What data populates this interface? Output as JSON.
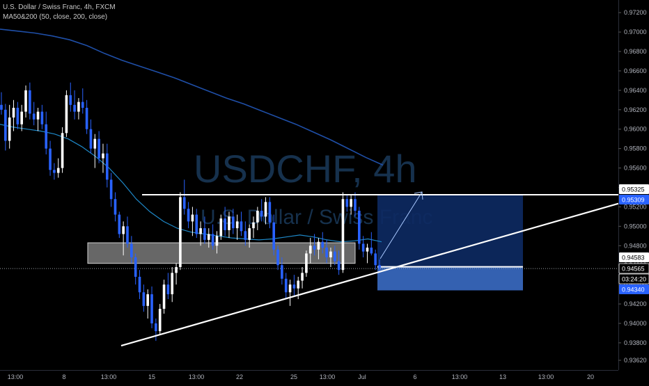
{
  "legend": {
    "symbol_line": "U.S. Dollar / Swiss Franc, 4h, FXCM",
    "indicator_line": "MA50&200 (50, close, 200, close)"
  },
  "watermark": {
    "ticker": "USDCHF, 4h",
    "name": "U.S. Dollar / Swiss Franc"
  },
  "colors": {
    "background": "#000000",
    "up_candle": "#ffffff",
    "down_candle": "#2962ff",
    "ma50": "#1e88c8",
    "ma200": "#1f4fa8",
    "position_box": "#0d2a63",
    "stop_box": "#3a6bc4",
    "grid": "#1a1a1a",
    "axis_text": "#b2b5be"
  },
  "chart_data": {
    "type": "candlestick",
    "title": "U.S. Dollar / Swiss Franc, 4h, FXCM",
    "y_ticks": [
      "0.97200",
      "0.97000",
      "0.96800",
      "0.96600",
      "0.96400",
      "0.96200",
      "0.96000",
      "0.95800",
      "0.95600",
      "0.95400",
      "0.95200",
      "0.95000",
      "0.94800",
      "0.94600",
      "0.94400",
      "0.94200",
      "0.94000",
      "0.93800",
      "0.93620"
    ],
    "x_ticks": [
      "13:00",
      "8",
      "13:00",
      "15",
      "13:00",
      "22",
      "25",
      "13:00",
      "Jul",
      "6",
      "13:00",
      "13",
      "13:00",
      "20"
    ],
    "ylim": [
      0.9352,
      0.9733
    ],
    "price_labels": [
      {
        "text": "0.95325",
        "style": "white"
      },
      {
        "text": "0.95309",
        "style": "blue"
      },
      {
        "text": "0.94583",
        "style": "white"
      },
      {
        "text": "0.94565",
        "style": "plain"
      },
      {
        "text": "03:24:20",
        "style": "plain"
      },
      {
        "text": "0.94340",
        "style": "blue"
      }
    ],
    "candles_ohlc": [
      [
        0.9625,
        0.9638,
        0.9615,
        0.962
      ],
      [
        0.962,
        0.9626,
        0.9578,
        0.9588
      ],
      [
        0.9588,
        0.9625,
        0.958,
        0.9612
      ],
      [
        0.9612,
        0.963,
        0.9598,
        0.9622
      ],
      [
        0.9622,
        0.9628,
        0.96,
        0.9605
      ],
      [
        0.9605,
        0.9625,
        0.9598,
        0.9618
      ],
      [
        0.9618,
        0.9645,
        0.9612,
        0.964
      ],
      [
        0.964,
        0.9648,
        0.961,
        0.9616
      ],
      [
        0.9616,
        0.9628,
        0.9604,
        0.961
      ],
      [
        0.961,
        0.9622,
        0.9598,
        0.9618
      ],
      [
        0.9618,
        0.9625,
        0.96,
        0.9605
      ],
      [
        0.9605,
        0.9618,
        0.9574,
        0.958
      ],
      [
        0.958,
        0.9588,
        0.9552,
        0.9558
      ],
      [
        0.9558,
        0.9565,
        0.9548,
        0.9555
      ],
      [
        0.9555,
        0.957,
        0.955,
        0.956
      ],
      [
        0.956,
        0.9602,
        0.9555,
        0.9596
      ],
      [
        0.9596,
        0.964,
        0.9592,
        0.9635
      ],
      [
        0.9635,
        0.9648,
        0.9618,
        0.9625
      ],
      [
        0.9625,
        0.964,
        0.961,
        0.9618
      ],
      [
        0.9618,
        0.9632,
        0.961,
        0.9628
      ],
      [
        0.9628,
        0.9642,
        0.9616,
        0.9622
      ],
      [
        0.9622,
        0.963,
        0.9595,
        0.96
      ],
      [
        0.96,
        0.961,
        0.9575,
        0.958
      ],
      [
        0.958,
        0.9595,
        0.956,
        0.959
      ],
      [
        0.959,
        0.9598,
        0.9565,
        0.957
      ],
      [
        0.957,
        0.9585,
        0.9555,
        0.9575
      ],
      [
        0.9575,
        0.9585,
        0.954,
        0.9548
      ],
      [
        0.9548,
        0.9555,
        0.952,
        0.9528
      ],
      [
        0.9528,
        0.9535,
        0.9505,
        0.9512
      ],
      [
        0.9512,
        0.9515,
        0.9488,
        0.9492
      ],
      [
        0.9492,
        0.9505,
        0.947,
        0.95
      ],
      [
        0.95,
        0.951,
        0.9478,
        0.9482
      ],
      [
        0.9482,
        0.949,
        0.9462,
        0.9468
      ],
      [
        0.9468,
        0.9472,
        0.944,
        0.9448
      ],
      [
        0.9448,
        0.9455,
        0.9425,
        0.9432
      ],
      [
        0.9432,
        0.944,
        0.9412,
        0.9418
      ],
      [
        0.9418,
        0.9435,
        0.9405,
        0.943
      ],
      [
        0.943,
        0.9438,
        0.9395,
        0.94
      ],
      [
        0.94,
        0.9405,
        0.9382,
        0.9392
      ],
      [
        0.9392,
        0.942,
        0.9388,
        0.9415
      ],
      [
        0.9415,
        0.9445,
        0.941,
        0.944
      ],
      [
        0.944,
        0.9452,
        0.9425,
        0.943
      ],
      [
        0.943,
        0.9458,
        0.9422,
        0.9452
      ],
      [
        0.9452,
        0.9462,
        0.944,
        0.9458
      ],
      [
        0.9458,
        0.9535,
        0.9455,
        0.953
      ],
      [
        0.953,
        0.9548,
        0.9512,
        0.9518
      ],
      [
        0.9518,
        0.9525,
        0.9498,
        0.9505
      ],
      [
        0.9505,
        0.952,
        0.949,
        0.9512
      ],
      [
        0.9512,
        0.9518,
        0.9488,
        0.9492
      ],
      [
        0.9492,
        0.9505,
        0.948,
        0.9498
      ],
      [
        0.9498,
        0.951,
        0.9482,
        0.9486
      ],
      [
        0.9486,
        0.9498,
        0.9478,
        0.9492
      ],
      [
        0.9492,
        0.9502,
        0.9476,
        0.948
      ],
      [
        0.948,
        0.9495,
        0.9472,
        0.949
      ],
      [
        0.949,
        0.9512,
        0.9486,
        0.9508
      ],
      [
        0.9508,
        0.952,
        0.949,
        0.9496
      ],
      [
        0.9496,
        0.9515,
        0.9488,
        0.951
      ],
      [
        0.951,
        0.9518,
        0.9492,
        0.9498
      ],
      [
        0.9498,
        0.9512,
        0.9486,
        0.9505
      ],
      [
        0.9505,
        0.9515,
        0.949,
        0.9495
      ],
      [
        0.9495,
        0.9505,
        0.948,
        0.9486
      ],
      [
        0.9486,
        0.9502,
        0.9478,
        0.9498
      ],
      [
        0.9498,
        0.951,
        0.9488,
        0.9504
      ],
      [
        0.9504,
        0.952,
        0.9496,
        0.9516
      ],
      [
        0.9516,
        0.9528,
        0.9505,
        0.951
      ],
      [
        0.951,
        0.953,
        0.9502,
        0.9525
      ],
      [
        0.9525,
        0.953,
        0.9498,
        0.9504
      ],
      [
        0.9504,
        0.9512,
        0.947,
        0.9476
      ],
      [
        0.9476,
        0.948,
        0.9455,
        0.946
      ],
      [
        0.946,
        0.9468,
        0.944,
        0.9446
      ],
      [
        0.9446,
        0.9452,
        0.9425,
        0.9432
      ],
      [
        0.9432,
        0.9445,
        0.9418,
        0.944
      ],
      [
        0.944,
        0.945,
        0.9428,
        0.9436
      ],
      [
        0.9436,
        0.9448,
        0.9425,
        0.9444
      ],
      [
        0.9444,
        0.9458,
        0.9436,
        0.9452
      ],
      [
        0.9452,
        0.9475,
        0.9448,
        0.9472
      ],
      [
        0.9472,
        0.9488,
        0.9462,
        0.948
      ],
      [
        0.948,
        0.9492,
        0.947,
        0.9476
      ],
      [
        0.9476,
        0.9488,
        0.9466,
        0.9484
      ],
      [
        0.9484,
        0.9494,
        0.9472,
        0.9478
      ],
      [
        0.9478,
        0.9486,
        0.9462,
        0.9468
      ],
      [
        0.9468,
        0.9478,
        0.9458,
        0.9474
      ],
      [
        0.9474,
        0.948,
        0.946,
        0.9464
      ],
      [
        0.9464,
        0.9475,
        0.945,
        0.9455
      ],
      [
        0.9455,
        0.9535,
        0.9452,
        0.9528
      ],
      [
        0.9528,
        0.9532,
        0.9515,
        0.952
      ],
      [
        0.952,
        0.9532,
        0.9512,
        0.9528
      ],
      [
        0.9528,
        0.9535,
        0.951,
        0.9516
      ],
      [
        0.9516,
        0.952,
        0.9476,
        0.9482
      ],
      [
        0.9482,
        0.949,
        0.9468,
        0.9474
      ],
      [
        0.9474,
        0.9482,
        0.9462,
        0.9478
      ],
      [
        0.9478,
        0.9494,
        0.947,
        0.9472
      ],
      [
        0.9472,
        0.9476,
        0.9455,
        0.946
      ],
      [
        0.946,
        0.9466,
        0.9452,
        0.9457
      ]
    ],
    "ma50": [
      0.9605,
      0.9602,
      0.96,
      0.9598,
      0.9595,
      0.959,
      0.9582,
      0.9572,
      0.956,
      0.9545,
      0.9528,
      0.9515,
      0.9505,
      0.9498,
      0.9494,
      0.9492,
      0.949,
      0.9488,
      0.9487,
      0.9486,
      0.9487,
      0.9489,
      0.9491,
      0.9489,
      0.9486,
      0.9484,
      0.9485,
      0.9487,
      0.9484
    ],
    "ma200": [
      0.9703,
      0.9701,
      0.9699,
      0.9696,
      0.9692,
      0.9686,
      0.9678,
      0.9671,
      0.9665,
      0.9659,
      0.9653,
      0.9646,
      0.9639,
      0.9632,
      0.9626,
      0.9619,
      0.9612,
      0.9605,
      0.9597,
      0.9589,
      0.958,
      0.9571,
      0.9563
    ],
    "levels": {
      "range_top": 0.95325,
      "demand_zone": [
        0.94618,
        0.9483
      ],
      "target": 0.95325,
      "entry": 0.94583,
      "stop": 0.9434
    },
    "trendline": {
      "from": [
        0,
        0.9377
      ],
      "to": [
        1,
        0.95234
      ]
    }
  }
}
